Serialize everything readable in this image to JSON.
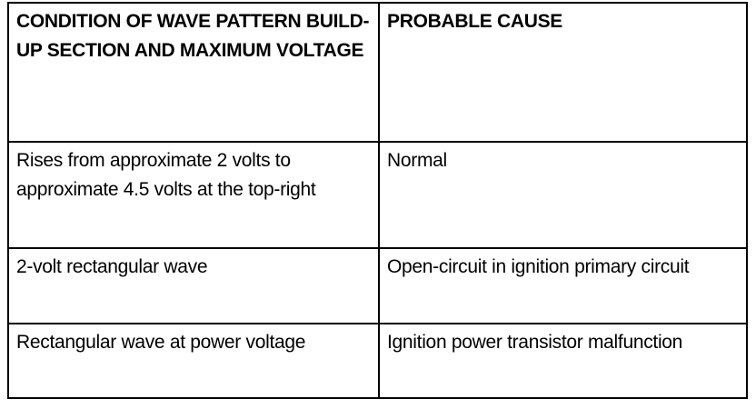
{
  "table": {
    "headers": [
      "CONDITION OF WAVE PATTERN BUILD-UP SECTION AND MAXIMUM VOLTAGE",
      "PROBABLE CAUSE"
    ],
    "rows": [
      [
        "Rises from approximate 2 volts to approximate 4.5 volts at the top-right",
        "Normal"
      ],
      [
        "2-volt rectangular wave",
        "Open-circuit in ignition primary circuit"
      ],
      [
        "Rectangular wave at power voltage",
        "Ignition power transistor malfunction"
      ]
    ]
  }
}
